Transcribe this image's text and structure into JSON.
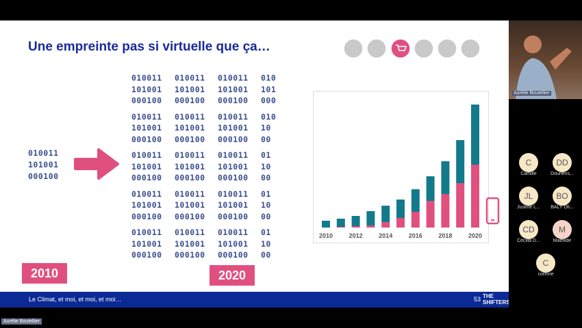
{
  "slide": {
    "title": "Une empreinte pas si virtuelle que ça…",
    "left_binary": [
      "010011",
      "101001",
      "000100"
    ],
    "binary_grid": [
      [
        [
          "010011",
          "010011",
          "010011",
          "010"
        ],
        [
          "101001",
          "101001",
          "101001",
          "101"
        ],
        [
          "000100",
          "000100",
          "000100",
          "000"
        ]
      ],
      [
        [
          "010011",
          "010011",
          "010011",
          "010"
        ],
        [
          "101001",
          "101001",
          "101001",
          "10"
        ],
        [
          "000100",
          "000100",
          "000100",
          "00"
        ]
      ],
      [
        [
          "010011",
          "010011",
          "010011",
          "01"
        ],
        [
          "101001",
          "101001",
          "101001",
          "10"
        ],
        [
          "000100",
          "000100",
          "000100",
          "00"
        ]
      ],
      [
        [
          "010011",
          "010011",
          "010011",
          "01"
        ],
        [
          "101001",
          "101001",
          "101001",
          "10"
        ],
        [
          "000100",
          "000100",
          "000100",
          "00"
        ]
      ],
      [
        [
          "010011",
          "010011",
          "010011",
          "01"
        ],
        [
          "101001",
          "101001",
          "101001",
          "10"
        ],
        [
          "000100",
          "000100",
          "000100",
          "00"
        ]
      ]
    ],
    "year_left": "2010",
    "year_right": "2020",
    "footer": "Le Climat, et moi, et moi, et moi…",
    "page_number": "53",
    "logo": [
      "THE",
      "SHIFTERS"
    ]
  },
  "chart_data": {
    "type": "stacked_bar",
    "categories": [
      "2010",
      null,
      "2012",
      null,
      "2014",
      null,
      "2016",
      null,
      "2018",
      null,
      "2020"
    ],
    "series": [
      {
        "color": "#e0507f",
        "values": [
          0,
          1,
          2,
          3,
          8,
          14,
          23,
          39,
          49,
          65,
          92
        ]
      },
      {
        "color": "#137a8c",
        "values": [
          10,
          12,
          15,
          21,
          24,
          27,
          33,
          36,
          48,
          63,
          88
        ]
      }
    ],
    "ylim": [
      0,
      190
    ]
  },
  "call": {
    "speaker": "Aurélie Boutellier",
    "presenter_label": "Aurélie Boutellier",
    "participants": [
      {
        "initials": "C",
        "name": "Camille"
      },
      {
        "initials": "DD",
        "name": "Dourlens..."
      },
      {
        "initials": "JL",
        "name": "Justine L..."
      },
      {
        "initials": "BO",
        "name": "BALY Oli..."
      },
      {
        "initials": "CD",
        "name": "Cécilia D..."
      },
      {
        "initials": "M",
        "name": "Mathilde"
      },
      {
        "initials": "C",
        "name": "corinne"
      }
    ]
  }
}
